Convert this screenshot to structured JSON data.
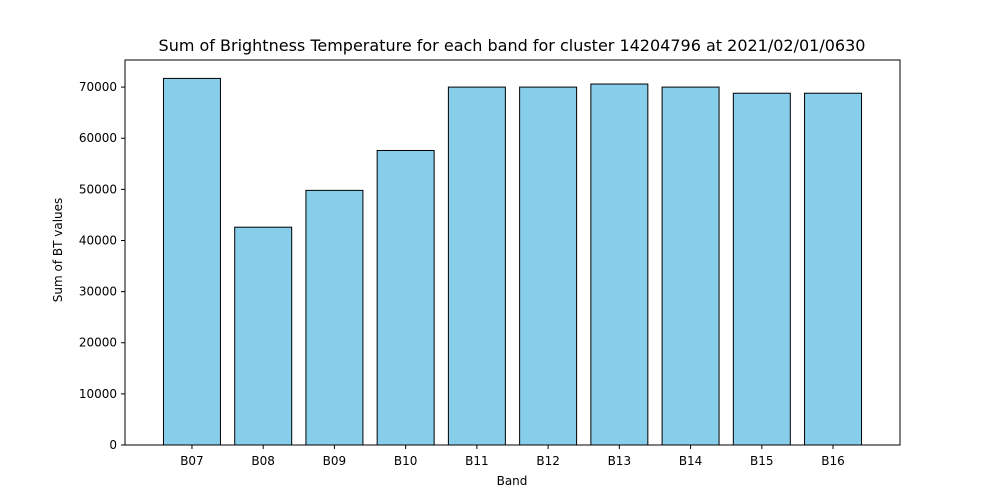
{
  "chart_data": {
    "type": "bar",
    "title": "Sum of Brightness Temperature for each band for cluster 14204796 at 2021/02/01/0630",
    "xlabel": "Band",
    "ylabel": "Sum of BT values",
    "categories": [
      "B07",
      "B08",
      "B09",
      "B10",
      "B11",
      "B12",
      "B13",
      "B14",
      "B15",
      "B16"
    ],
    "values": [
      71700,
      42600,
      49800,
      57600,
      70000,
      70000,
      70600,
      70000,
      68800,
      68800
    ],
    "ylim": [
      0,
      75300
    ],
    "yticks": [
      0,
      10000,
      20000,
      30000,
      40000,
      50000,
      60000,
      70000
    ],
    "ytick_labels": [
      "0",
      "10000",
      "20000",
      "30000",
      "40000",
      "50000",
      "60000",
      "70000"
    ],
    "grid": false,
    "bar_color": "#87ceeb",
    "edge_color": "#000000"
  }
}
